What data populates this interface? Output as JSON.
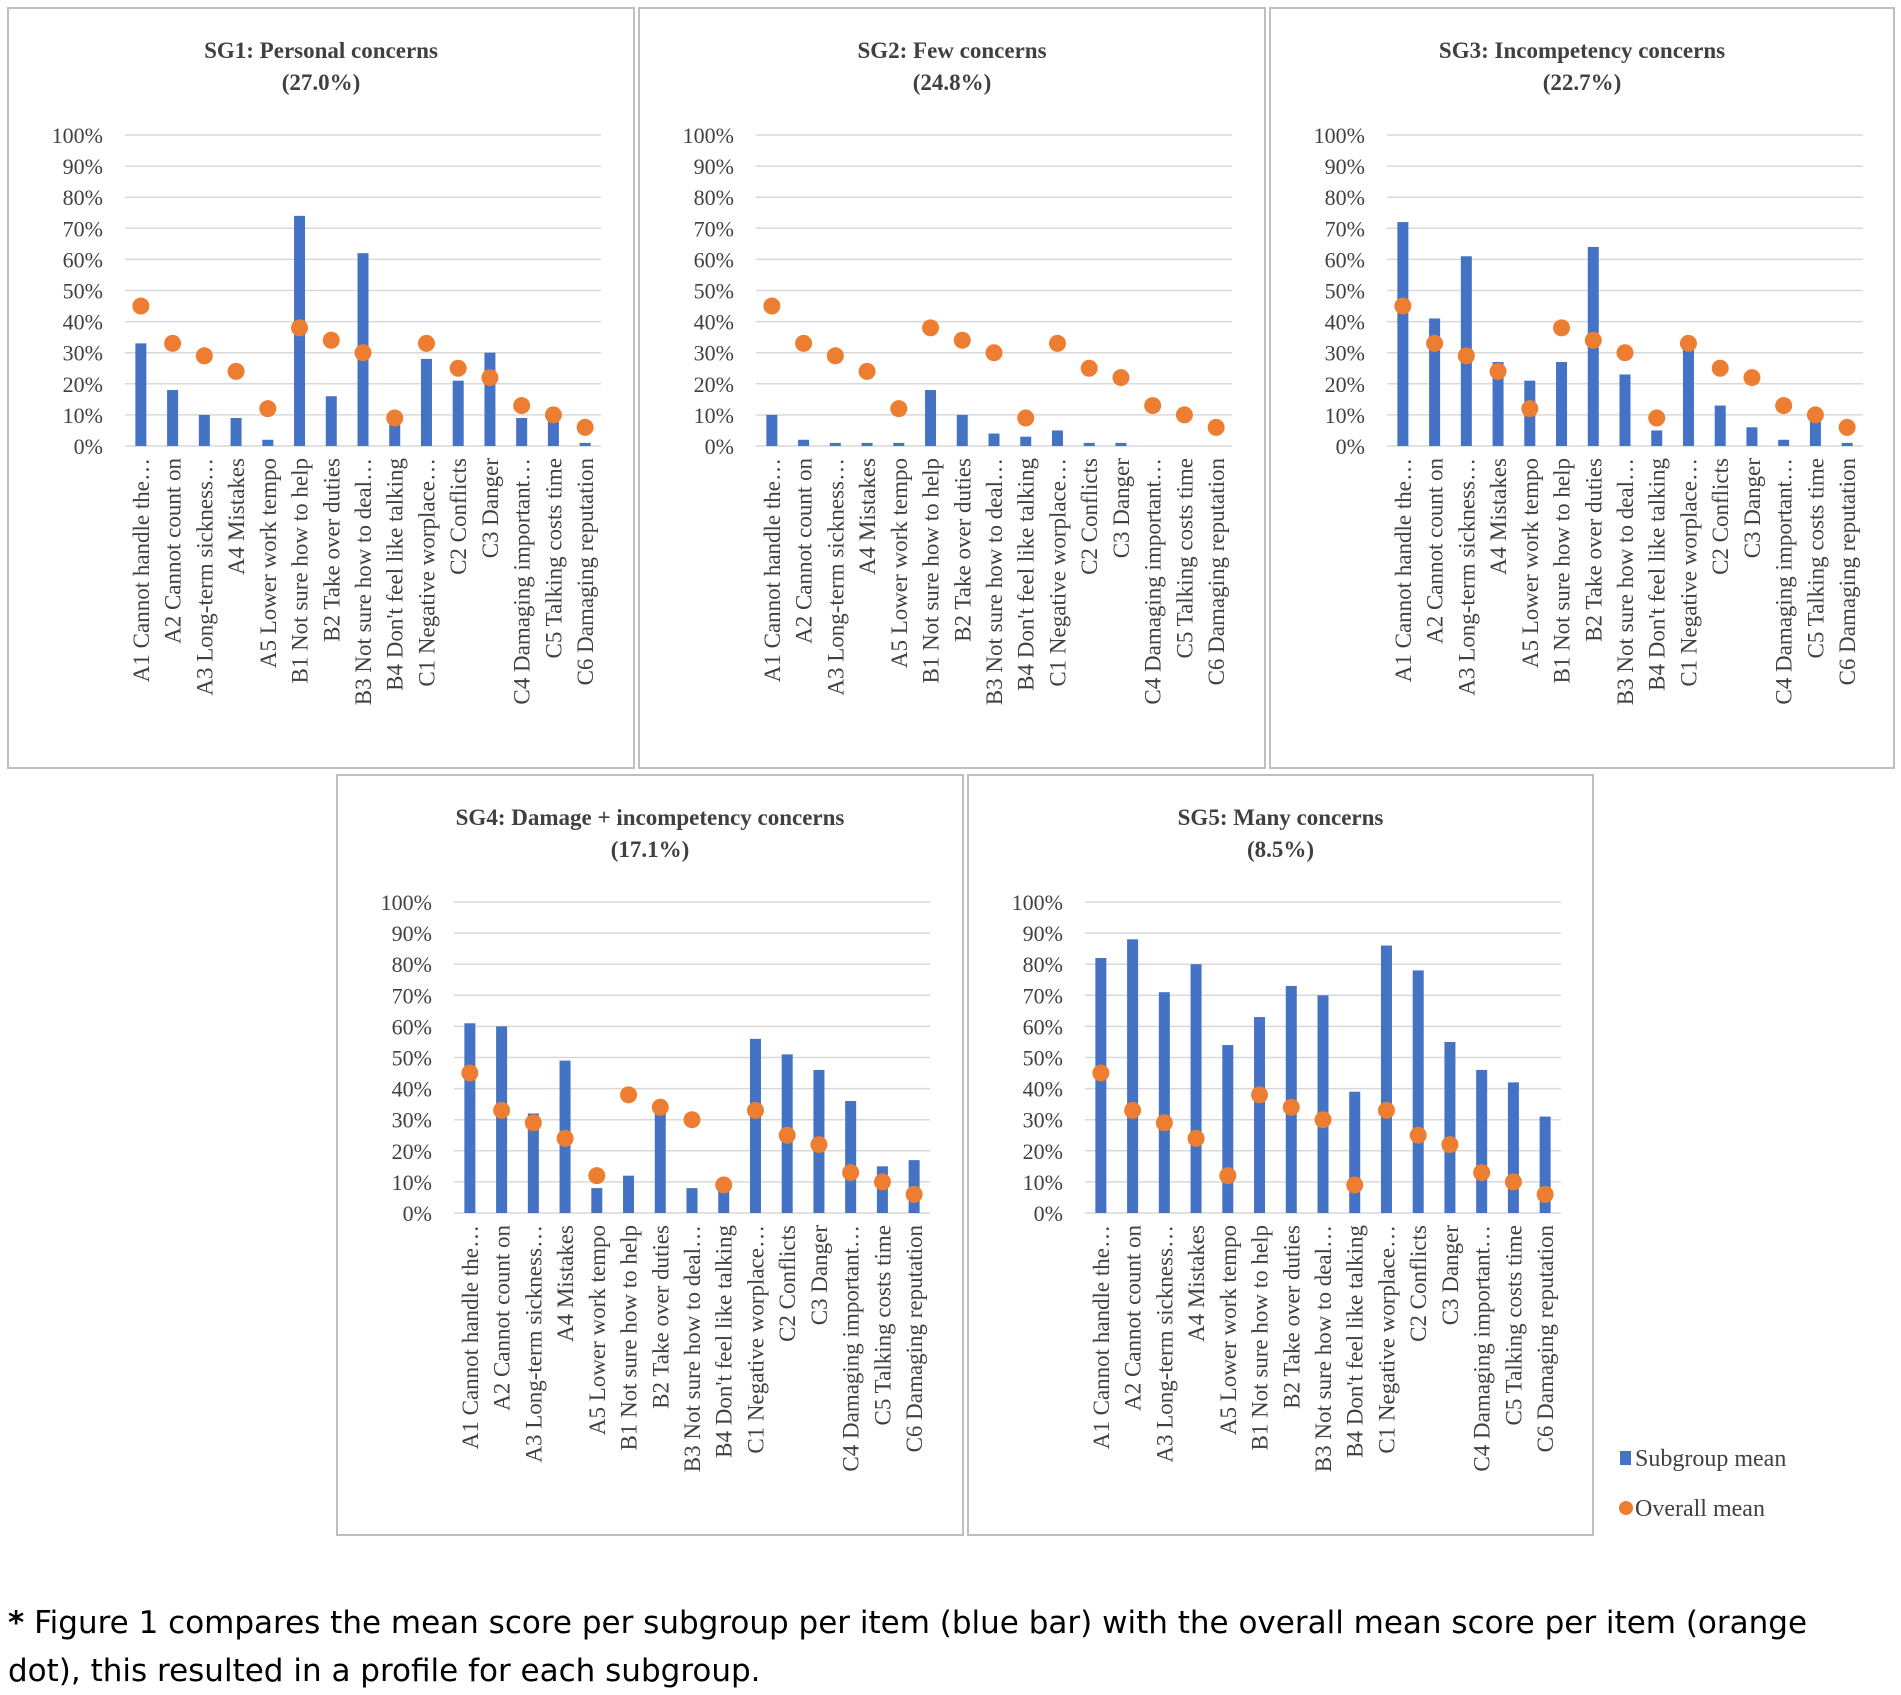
{
  "figure": {
    "items": [
      "A1 Cannot handle the…",
      "A2 Cannot count on",
      "A3 Long-term sickness…",
      "A4 Mistakes",
      "A5 Lower work tempo",
      "B1 Not sure how to help",
      "B2 Take over duties",
      "B3 Not sure how to deal…",
      "B4 Don't feel like talking",
      "C1 Negative worplace…",
      "C2 Conflicts",
      "C3 Danger",
      "C4 Damaging important…",
      "C5 Talking costs time",
      "C6 Damaging  reputation"
    ],
    "y_ticks": [
      "0%",
      "10%",
      "20%",
      "30%",
      "40%",
      "50%",
      "60%",
      "70%",
      "80%",
      "90%",
      "100%"
    ],
    "overall_mean": [
      45,
      33,
      29,
      24,
      12,
      38,
      34,
      30,
      9,
      33,
      25,
      22,
      13,
      10,
      6
    ],
    "legend": {
      "subgroup": "Subgroup mean",
      "overall": "Overall mean"
    },
    "colors": {
      "bar": "#4472c4",
      "dot": "#ed7d31",
      "grid": "#d9d9d9",
      "frame": "#bfbfbf",
      "text": "#404040"
    }
  },
  "chart_data": [
    {
      "type": "bar",
      "title": "SG1: Personal concerns",
      "subtitle": "(27.0%)",
      "ylim": [
        0,
        100
      ],
      "series": [
        {
          "name": "Subgroup mean",
          "values": [
            33,
            18,
            10,
            9,
            2,
            74,
            16,
            62,
            7,
            28,
            21,
            30,
            9,
            8,
            1
          ]
        },
        {
          "name": "Overall mean",
          "values": [
            45,
            33,
            29,
            24,
            12,
            38,
            34,
            30,
            9,
            33,
            25,
            22,
            13,
            10,
            6
          ]
        }
      ]
    },
    {
      "type": "bar",
      "title": "SG2: Few concerns",
      "subtitle": "(24.8%)",
      "ylim": [
        0,
        100
      ],
      "series": [
        {
          "name": "Subgroup mean",
          "values": [
            10,
            2,
            1,
            1,
            1,
            18,
            10,
            4,
            3,
            5,
            1,
            1,
            0,
            0,
            0
          ]
        },
        {
          "name": "Overall mean",
          "values": [
            45,
            33,
            29,
            24,
            12,
            38,
            34,
            30,
            9,
            33,
            25,
            22,
            13,
            10,
            6
          ]
        }
      ]
    },
    {
      "type": "bar",
      "title": "SG3: Incompetency concerns",
      "subtitle": "(22.7%)",
      "ylim": [
        0,
        100
      ],
      "series": [
        {
          "name": "Subgroup mean",
          "values": [
            72,
            41,
            61,
            27,
            21,
            27,
            64,
            23,
            5,
            33,
            13,
            6,
            2,
            8,
            1
          ]
        },
        {
          "name": "Overall mean",
          "values": [
            45,
            33,
            29,
            24,
            12,
            38,
            34,
            30,
            9,
            33,
            25,
            22,
            13,
            10,
            6
          ]
        }
      ]
    },
    {
      "type": "bar",
      "title": "SG4: Damage + incompetency concerns",
      "subtitle": "(17.1%)",
      "ylim": [
        0,
        100
      ],
      "series": [
        {
          "name": "Subgroup mean",
          "values": [
            61,
            60,
            32,
            49,
            8,
            12,
            35,
            8,
            10,
            56,
            51,
            46,
            36,
            15,
            17
          ]
        },
        {
          "name": "Overall mean",
          "values": [
            45,
            33,
            29,
            24,
            12,
            38,
            34,
            30,
            9,
            33,
            25,
            22,
            13,
            10,
            6
          ]
        }
      ]
    },
    {
      "type": "bar",
      "title": "SG5: Many concerns",
      "subtitle": "(8.5%)",
      "ylim": [
        0,
        100
      ],
      "series": [
        {
          "name": "Subgroup mean",
          "values": [
            82,
            88,
            71,
            80,
            54,
            63,
            73,
            70,
            39,
            86,
            78,
            55,
            46,
            42,
            31
          ]
        },
        {
          "name": "Overall mean",
          "values": [
            45,
            33,
            29,
            24,
            12,
            38,
            34,
            30,
            9,
            33,
            25,
            22,
            13,
            10,
            6
          ]
        }
      ]
    }
  ],
  "caption": {
    "star": "*",
    "text": " Figure 1 compares the mean score per subgroup per item (blue bar) with the overall mean score per item (orange dot), this resulted in a profile for each subgroup."
  }
}
